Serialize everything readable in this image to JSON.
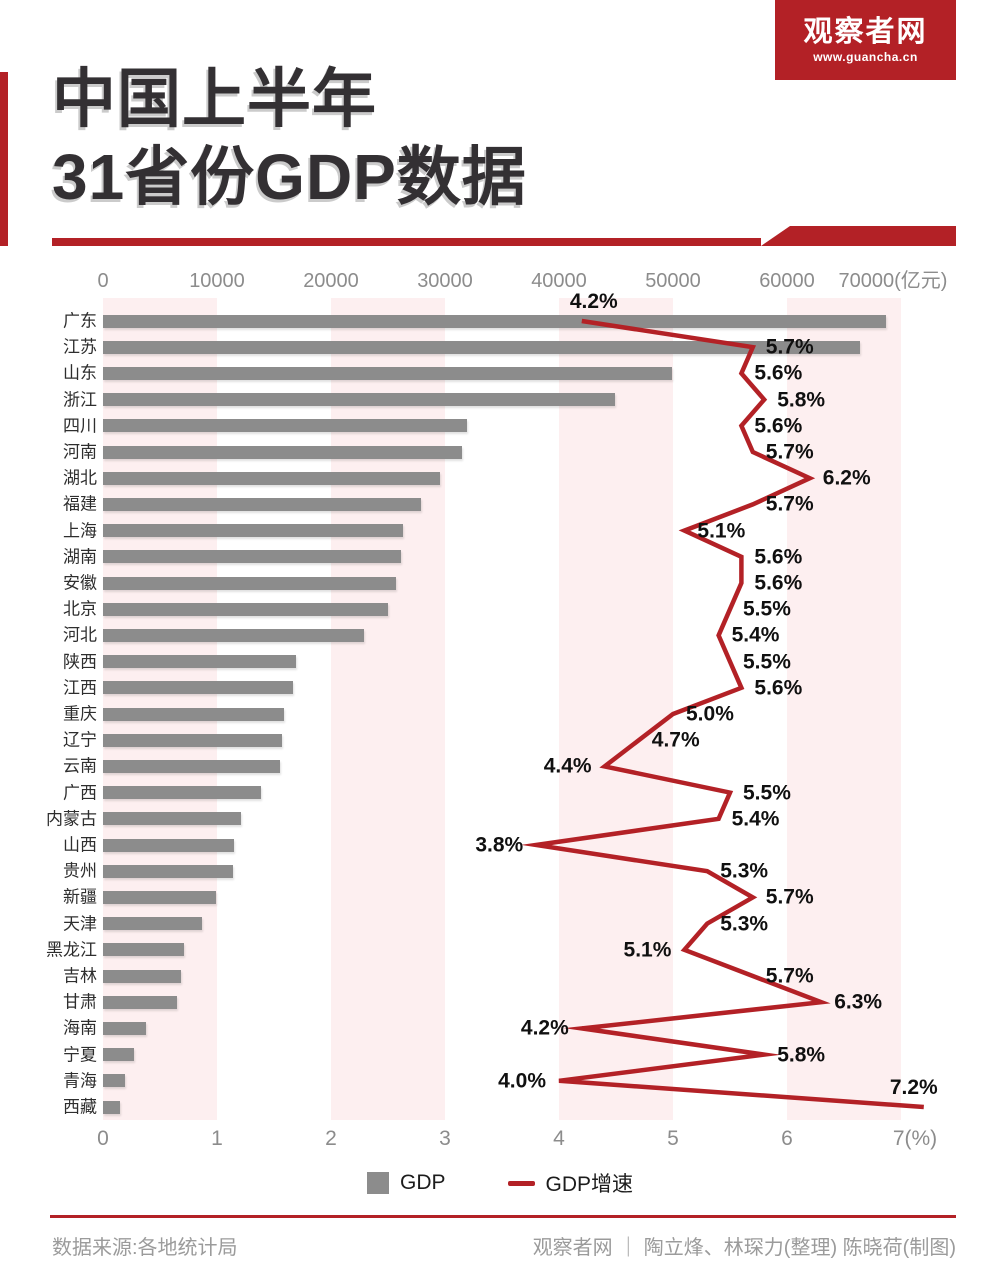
{
  "header": {
    "logo": {
      "name": "观察者网",
      "url": "www.guancha.cn"
    },
    "title_line1": "中国上半年",
    "title_line2": "31省份GDP数据"
  },
  "chart_data": {
    "type": "bar",
    "orientation": "horizontal",
    "title": "中国上半年31省份GDP数据",
    "categories": [
      "广东",
      "江苏",
      "山东",
      "浙江",
      "四川",
      "河南",
      "湖北",
      "福建",
      "上海",
      "湖南",
      "安徽",
      "北京",
      "河北",
      "陕西",
      "江西",
      "重庆",
      "辽宁",
      "云南",
      "广西",
      "内蒙古",
      "山西",
      "贵州",
      "新疆",
      "天津",
      "黑龙江",
      "吉林",
      "甘肃",
      "海南",
      "宁夏",
      "青海",
      "西藏"
    ],
    "series": [
      {
        "name": "GDP",
        "type": "bar",
        "unit": "亿元",
        "values_estimated_from_bars": true,
        "values": [
          68700,
          66400,
          49900,
          44900,
          31900,
          31500,
          29600,
          27900,
          26300,
          26100,
          25700,
          25000,
          22900,
          16900,
          16700,
          15900,
          15700,
          15500,
          13900,
          12100,
          11500,
          11400,
          9900,
          8700,
          7100,
          6800,
          6500,
          3800,
          2700,
          1900,
          1500
        ]
      },
      {
        "name": "GDP增速",
        "type": "line",
        "unit": "%",
        "values": [
          4.2,
          5.7,
          5.6,
          5.8,
          5.6,
          5.7,
          6.2,
          5.7,
          5.1,
          5.6,
          5.6,
          5.5,
          5.4,
          5.5,
          5.6,
          5.0,
          4.7,
          4.4,
          5.5,
          5.4,
          3.8,
          5.3,
          5.7,
          5.3,
          5.1,
          5.7,
          6.3,
          4.2,
          5.8,
          4.0,
          7.2
        ],
        "label_sides": [
          "above",
          "right",
          "right",
          "right",
          "right",
          "right",
          "right",
          "right",
          "right",
          "right",
          "right",
          "right",
          "right",
          "right",
          "right",
          "right",
          "right",
          "left",
          "right",
          "right",
          "left",
          "right",
          "right",
          "right",
          "left",
          "right",
          "right",
          "left",
          "right",
          "left",
          "above"
        ]
      }
    ],
    "axes": {
      "top": {
        "ticks": [
          0,
          10000,
          20000,
          30000,
          40000,
          50000,
          60000,
          70000
        ],
        "suffix": "(亿元)",
        "range": [
          0,
          70000
        ]
      },
      "bottom": {
        "ticks": [
          0,
          1,
          2,
          3,
          4,
          5,
          6,
          7
        ],
        "suffix": "(%)",
        "range": [
          0,
          7
        ]
      }
    },
    "legend": {
      "position": "bottom",
      "items": [
        "GDP",
        "GDP增速"
      ]
    },
    "grid": "alternating light-pink vertical bands on even intervals"
  },
  "footer": {
    "source": "数据来源:各地统计局",
    "credits": "观察者网 ｜ 陶立烽、林琛力(整理) 陈晓荷(制图)"
  },
  "colors": {
    "accent_red": "#b32126",
    "bar_gray": "#8c8c8c",
    "band_pink": "#fdeff0",
    "axis_text_gray": "#8c8c8c",
    "title_black": "#333033",
    "footer_gray": "#9b9b9b"
  }
}
